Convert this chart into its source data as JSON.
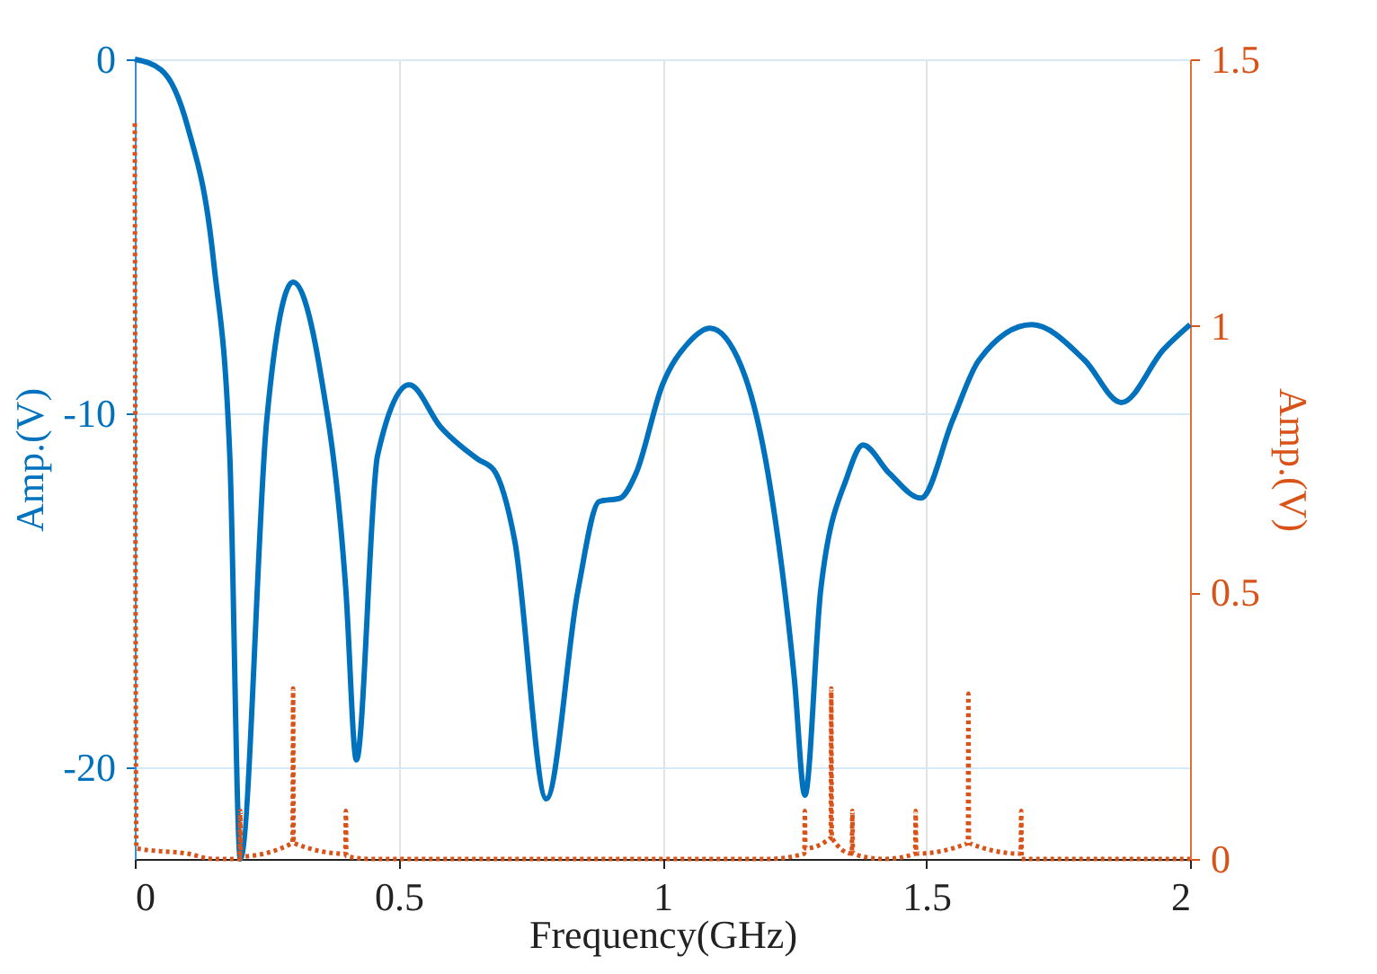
{
  "chart_data": {
    "type": "line",
    "xlabel": "Frequency(GHz)",
    "ylabel": "Amp.(V)",
    "y2label": "Amp.(V)",
    "xlim": [
      0,
      2
    ],
    "xticks": [
      0,
      0.5,
      1,
      1.5,
      2
    ],
    "ylim": [
      -22.6,
      0
    ],
    "yticks": [
      -20,
      -10,
      0
    ],
    "y2lim": [
      0,
      1.5
    ],
    "y2ticks": [
      0,
      0.5,
      1,
      1.5
    ],
    "grid": true,
    "marker": "none",
    "series": [
      {
        "color": "#0072bd",
        "line_style": "solid",
        "x": [
          0,
          0.05,
          0.1,
          0.15,
          0.18,
          0.2,
          0.25,
          0.3,
          0.35,
          0.4,
          0.42,
          0.46,
          0.52,
          0.58,
          0.65,
          0.68,
          0.72,
          0.78,
          0.84,
          0.88,
          0.92,
          0.95,
          1.0,
          1.05,
          1.09,
          1.15,
          1.2,
          1.25,
          1.27,
          1.3,
          1.35,
          1.38,
          1.43,
          1.49,
          1.55,
          1.6,
          1.7,
          1.8,
          1.87,
          1.95,
          2.0
        ],
        "values": [
          0,
          -0.3,
          -1.9,
          -5.8,
          -11.2,
          -22.6,
          -10.2,
          -6.3,
          -8.7,
          -15,
          -19.8,
          -11.2,
          -9.2,
          -10.4,
          -11.3,
          -11.6,
          -13.6,
          -20.9,
          -15,
          -12.5,
          -12.4,
          -11.7,
          -9.2,
          -8,
          -7.6,
          -8.7,
          -11.7,
          -17.5,
          -20.8,
          -15,
          -11.8,
          -10.9,
          -11.7,
          -12.4,
          -10.2,
          -8.5,
          -7.5,
          -8.5,
          -9.7,
          -8.2,
          -7.5
        ]
      },
      {
        "axis": "y2",
        "color": "#d95319",
        "line_style": "dotted",
        "x": [
          0,
          0.003,
          0.1,
          0.15,
          0.199,
          0.2,
          0.201,
          0.299,
          0.3,
          0.301,
          0.399,
          0.4,
          0.401,
          0.45,
          1.2,
          1.269,
          1.27,
          1.271,
          1.319,
          1.32,
          1.321,
          1.359,
          1.36,
          1.361,
          1.42,
          1.479,
          1.48,
          1.481,
          1.579,
          1.58,
          1.581,
          1.679,
          1.68,
          1.681,
          2.0
        ],
        "values": [
          1.38,
          0.02,
          0.01,
          0,
          0,
          0.09,
          0.005,
          0.03,
          0.32,
          0.03,
          0.01,
          0.09,
          0.005,
          0,
          0,
          0.01,
          0.09,
          0.02,
          0.04,
          0.32,
          0.04,
          0.01,
          0.09,
          0.01,
          0,
          0.01,
          0.09,
          0.01,
          0.03,
          0.31,
          0.03,
          0.01,
          0.09,
          0,
          0
        ]
      }
    ]
  }
}
